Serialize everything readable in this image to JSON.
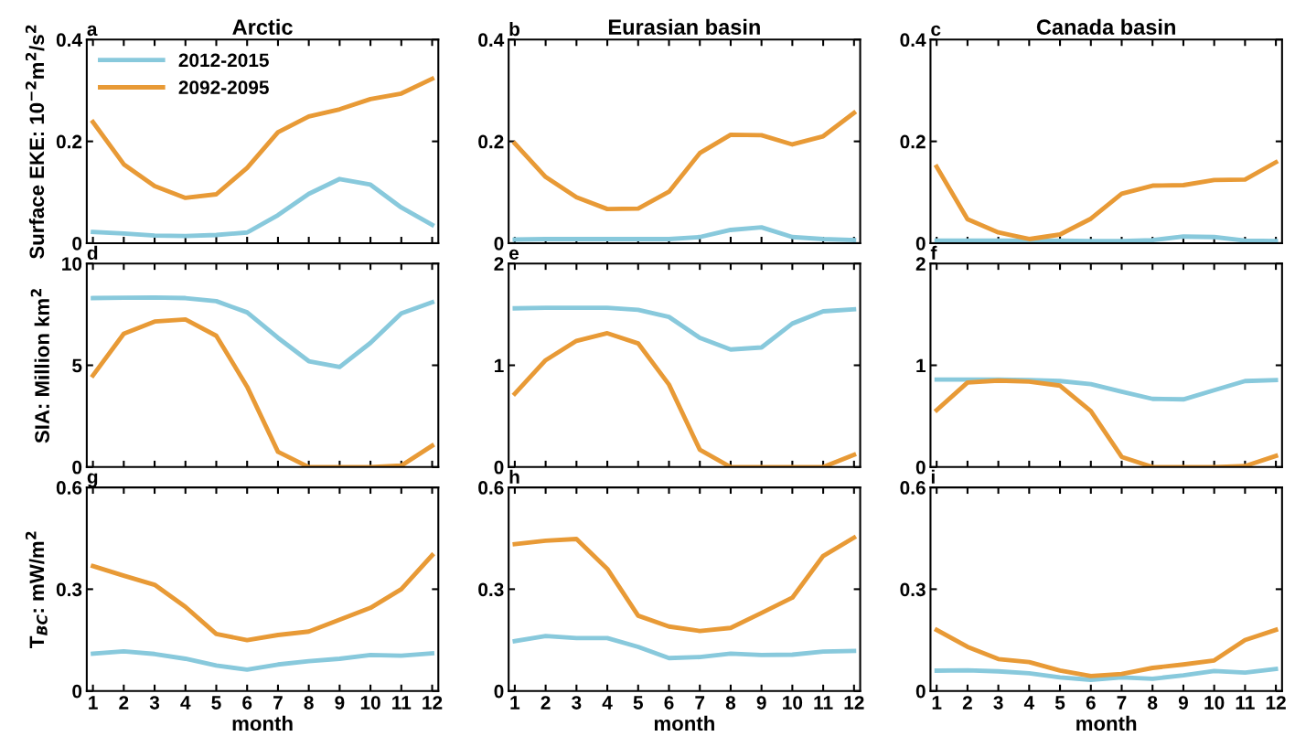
{
  "chart_data": [
    {
      "type": "line",
      "title": "Arctic",
      "ylabel": "Surface EKE: 10$^{−2}$m$^{2}$/s$^{2}$",
      "annotations": [
        "a"
      ],
      "x": [
        1,
        2,
        3,
        4,
        5,
        6,
        7,
        8,
        9,
        10,
        11,
        12
      ],
      "xlim": [
        0.8,
        12.2
      ],
      "xticks": [
        1,
        2,
        3,
        4,
        5,
        6,
        7,
        8,
        9,
        10,
        11,
        12
      ],
      "ylim": [
        0,
        0.4
      ],
      "yticks": [
        0,
        0.2,
        0.4
      ],
      "tick_labels": "y",
      "grid": false,
      "legend": "top left",
      "series": [
        {
          "name": "2012-2015",
          "color": "#88c9dc",
          "values": [
            0.022,
            0.019,
            0.015,
            0.014,
            0.016,
            0.021,
            0.055,
            0.097,
            0.126,
            0.115,
            0.07,
            0.036
          ]
        },
        {
          "name": "2092-2095",
          "color": "#e89a36",
          "values": [
            0.238,
            0.155,
            0.112,
            0.089,
            0.096,
            0.148,
            0.218,
            0.249,
            0.263,
            0.283,
            0.294,
            0.323
          ]
        }
      ]
    },
    {
      "type": "line",
      "title": "Eurasian basin",
      "annotations": [
        "b"
      ],
      "x": [
        1,
        2,
        3,
        4,
        5,
        6,
        7,
        8,
        9,
        10,
        11,
        12
      ],
      "xlim": [
        0.8,
        12.2
      ],
      "xticks": [
        1,
        2,
        3,
        4,
        5,
        6,
        7,
        8,
        9,
        10,
        11,
        12
      ],
      "ylim": [
        0,
        0.4
      ],
      "yticks": [
        0,
        0.2,
        0.4
      ],
      "tick_labels": "y",
      "grid": false,
      "series": [
        {
          "color": "#88c9dc",
          "values": [
            0.007,
            0.008,
            0.008,
            0.008,
            0.008,
            0.008,
            0.012,
            0.026,
            0.031,
            0.012,
            0.008,
            0.006
          ]
        },
        {
          "color": "#e89a36",
          "values": [
            0.196,
            0.13,
            0.09,
            0.067,
            0.068,
            0.101,
            0.177,
            0.213,
            0.212,
            0.194,
            0.21,
            0.256
          ]
        }
      ]
    },
    {
      "type": "line",
      "title": "Canada basin",
      "annotations": [
        "c"
      ],
      "x": [
        1,
        2,
        3,
        4,
        5,
        6,
        7,
        8,
        9,
        10,
        11,
        12
      ],
      "xlim": [
        0.8,
        12.2
      ],
      "xticks": [
        1,
        2,
        3,
        4,
        5,
        6,
        7,
        8,
        9,
        10,
        11,
        12
      ],
      "ylim": [
        0,
        0.4
      ],
      "yticks": [
        0,
        0.2,
        0.4
      ],
      "tick_labels": "y",
      "grid": false,
      "series": [
        {
          "color": "#88c9dc",
          "values": [
            0.005,
            0.005,
            0.005,
            0.005,
            0.005,
            0.004,
            0.004,
            0.006,
            0.013,
            0.012,
            0.005,
            0.004
          ]
        },
        {
          "color": "#e89a36",
          "values": [
            0.15,
            0.047,
            0.021,
            0.008,
            0.017,
            0.048,
            0.097,
            0.113,
            0.114,
            0.124,
            0.125,
            0.159
          ]
        }
      ]
    },
    {
      "type": "line",
      "ylabel": "SIA: Million km$^{2}$",
      "annotations": [
        "d"
      ],
      "x": [
        1,
        2,
        3,
        4,
        5,
        6,
        7,
        8,
        9,
        10,
        11,
        12
      ],
      "xlim": [
        0.8,
        12.2
      ],
      "xticks": [
        1,
        2,
        3,
        4,
        5,
        6,
        7,
        8,
        9,
        10,
        11,
        12
      ],
      "ylim": [
        0,
        10
      ],
      "yticks": [
        0,
        5,
        10
      ],
      "tick_labels": "y",
      "grid": false,
      "series": [
        {
          "color": "#88c9dc",
          "values": [
            8.3,
            8.32,
            8.33,
            8.3,
            8.15,
            7.6,
            6.35,
            5.2,
            4.92,
            6.1,
            7.55,
            8.1
          ]
        },
        {
          "color": "#e89a36",
          "values": [
            4.5,
            6.55,
            7.15,
            7.25,
            6.45,
            3.95,
            0.75,
            0,
            0,
            0,
            0.07,
            1.05
          ]
        }
      ]
    },
    {
      "type": "line",
      "annotations": [
        "e"
      ],
      "x": [
        1,
        2,
        3,
        4,
        5,
        6,
        7,
        8,
        9,
        10,
        11,
        12
      ],
      "xlim": [
        0.8,
        12.2
      ],
      "xticks": [
        1,
        2,
        3,
        4,
        5,
        6,
        7,
        8,
        9,
        10,
        11,
        12
      ],
      "ylim": [
        0,
        2
      ],
      "yticks": [
        0,
        1,
        2
      ],
      "tick_labels": "y",
      "grid": false,
      "series": [
        {
          "color": "#88c9dc",
          "values": [
            1.56,
            1.565,
            1.565,
            1.565,
            1.545,
            1.475,
            1.27,
            1.155,
            1.175,
            1.41,
            1.53,
            1.55
          ]
        },
        {
          "color": "#e89a36",
          "values": [
            0.72,
            1.05,
            1.24,
            1.315,
            1.215,
            0.81,
            0.17,
            0,
            0,
            0,
            0,
            0.12
          ]
        }
      ]
    },
    {
      "type": "line",
      "annotations": [
        "f"
      ],
      "x": [
        1,
        2,
        3,
        4,
        5,
        6,
        7,
        8,
        9,
        10,
        11,
        12
      ],
      "xlim": [
        0.8,
        12.2
      ],
      "xticks": [
        1,
        2,
        3,
        4,
        5,
        6,
        7,
        8,
        9,
        10,
        11,
        12
      ],
      "ylim": [
        0,
        2
      ],
      "yticks": [
        0,
        1,
        2
      ],
      "tick_labels": "y",
      "grid": false,
      "series": [
        {
          "color": "#88c9dc",
          "values": [
            0.86,
            0.86,
            0.86,
            0.855,
            0.845,
            0.815,
            0.74,
            0.67,
            0.665,
            0.755,
            0.845,
            0.855
          ]
        },
        {
          "color": "#e89a36",
          "values": [
            0.56,
            0.83,
            0.85,
            0.84,
            0.8,
            0.55,
            0.1,
            0,
            0,
            0,
            0.01,
            0.11
          ]
        }
      ]
    },
    {
      "type": "line",
      "xlabel": "month",
      "ylabel": "T$_{BC}$: mW/m$^{2}$",
      "annotations": [
        "g"
      ],
      "x": [
        1,
        2,
        3,
        4,
        5,
        6,
        7,
        8,
        9,
        10,
        11,
        12
      ],
      "xlim": [
        0.8,
        12.2
      ],
      "xticks": [
        1,
        2,
        3,
        4,
        5,
        6,
        7,
        8,
        9,
        10,
        11,
        12
      ],
      "ylim": [
        0,
        0.6
      ],
      "yticks": [
        0,
        0.3,
        0.6
      ],
      "grid": false,
      "series": [
        {
          "color": "#88c9dc",
          "values": [
            0.11,
            0.117,
            0.109,
            0.095,
            0.075,
            0.063,
            0.078,
            0.088,
            0.095,
            0.106,
            0.104,
            0.111
          ]
        },
        {
          "color": "#e89a36",
          "values": [
            0.368,
            0.34,
            0.313,
            0.248,
            0.168,
            0.15,
            0.165,
            0.175,
            0.21,
            0.245,
            0.3,
            0.4
          ]
        }
      ]
    },
    {
      "type": "line",
      "xlabel": "month",
      "annotations": [
        "h"
      ],
      "x": [
        1,
        2,
        3,
        4,
        5,
        6,
        7,
        8,
        9,
        10,
        11,
        12
      ],
      "xlim": [
        0.8,
        12.2
      ],
      "xticks": [
        1,
        2,
        3,
        4,
        5,
        6,
        7,
        8,
        9,
        10,
        11,
        12
      ],
      "ylim": [
        0,
        0.6
      ],
      "yticks": [
        0,
        0.3,
        0.6
      ],
      "grid": false,
      "series": [
        {
          "color": "#88c9dc",
          "values": [
            0.147,
            0.162,
            0.156,
            0.156,
            0.13,
            0.097,
            0.1,
            0.11,
            0.106,
            0.107,
            0.116,
            0.118
          ]
        },
        {
          "color": "#e89a36",
          "values": [
            0.433,
            0.443,
            0.448,
            0.36,
            0.222,
            0.19,
            0.177,
            0.186,
            0.23,
            0.275,
            0.398,
            0.452
          ]
        }
      ]
    },
    {
      "type": "line",
      "xlabel": "month",
      "annotations": [
        "i"
      ],
      "x": [
        1,
        2,
        3,
        4,
        5,
        6,
        7,
        8,
        9,
        10,
        11,
        12
      ],
      "xlim": [
        0.8,
        12.2
      ],
      "xticks": [
        1,
        2,
        3,
        4,
        5,
        6,
        7,
        8,
        9,
        10,
        11,
        12
      ],
      "ylim": [
        0,
        0.6
      ],
      "yticks": [
        0,
        0.3,
        0.6
      ],
      "grid": false,
      "series": [
        {
          "color": "#88c9dc",
          "values": [
            0.06,
            0.061,
            0.058,
            0.052,
            0.04,
            0.033,
            0.04,
            0.036,
            0.046,
            0.059,
            0.054,
            0.065
          ]
        },
        {
          "color": "#e89a36",
          "values": [
            0.18,
            0.13,
            0.094,
            0.085,
            0.06,
            0.044,
            0.05,
            0.068,
            0.078,
            0.09,
            0.15,
            0.18
          ]
        }
      ]
    }
  ]
}
